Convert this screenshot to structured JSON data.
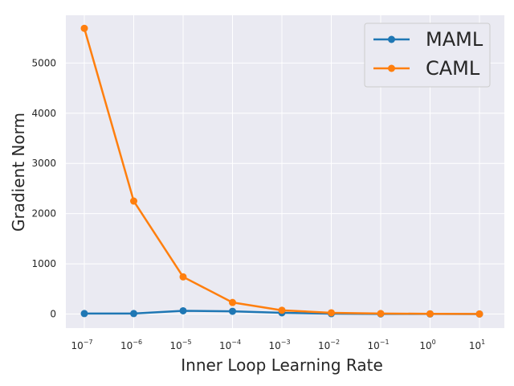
{
  "chart_data": {
    "type": "line",
    "xlabel": "Inner Loop Learning Rate",
    "ylabel": "Gradient Norm",
    "x_scale": "log",
    "x_ticks": [
      {
        "base": "10",
        "exp": "−7"
      },
      {
        "base": "10",
        "exp": "−6"
      },
      {
        "base": "10",
        "exp": "−5"
      },
      {
        "base": "10",
        "exp": "−4"
      },
      {
        "base": "10",
        "exp": "−3"
      },
      {
        "base": "10",
        "exp": "−2"
      },
      {
        "base": "10",
        "exp": "−1"
      },
      {
        "base": "10",
        "exp": "0"
      },
      {
        "base": "10",
        "exp": "1"
      }
    ],
    "x": [
      1e-07,
      1e-06,
      1e-05,
      0.0001,
      0.001,
      0.01,
      0.1,
      1,
      10
    ],
    "y_ticks": [
      "0",
      "1000",
      "2000",
      "3000",
      "4000",
      "5000"
    ],
    "ylim": [
      -280,
      5950
    ],
    "grid": true,
    "background": "#eaeaf2",
    "legend_position": "top-right",
    "series": [
      {
        "name": "MAML",
        "color": "#1f77b4",
        "values": [
          10,
          10,
          65,
          55,
          25,
          8,
          3,
          2,
          1
        ]
      },
      {
        "name": "CAML",
        "color": "#ff7f0e",
        "values": [
          5690,
          2250,
          740,
          230,
          75,
          25,
          10,
          5,
          2
        ]
      }
    ]
  }
}
